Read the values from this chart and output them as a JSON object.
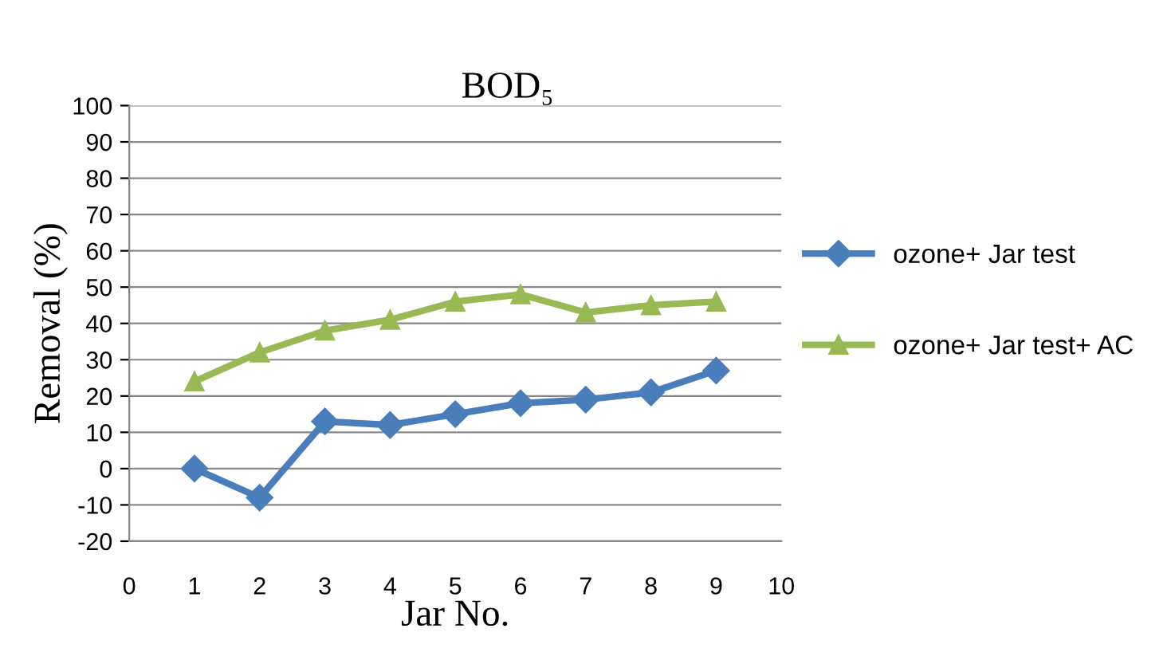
{
  "chart_data": {
    "type": "line",
    "title": "BOD₅",
    "xlabel": "Jar No.",
    "ylabel": "Removal (%)",
    "x": [
      1,
      2,
      3,
      4,
      5,
      6,
      7,
      8,
      9
    ],
    "series": [
      {
        "name": "ozone+ Jar test",
        "color": "#4a7ebb",
        "marker": "diamond",
        "values": [
          0,
          -8,
          13,
          12,
          15,
          18,
          19,
          21,
          27
        ]
      },
      {
        "name": "ozone+ Jar test+ AC",
        "color": "#98b954",
        "marker": "triangle",
        "values": [
          24,
          32,
          38,
          41,
          46,
          48,
          43,
          45,
          46
        ]
      }
    ],
    "xlim": [
      0,
      10
    ],
    "xticks": [
      0,
      1,
      2,
      3,
      4,
      5,
      6,
      7,
      8,
      9,
      10
    ],
    "ylim": [
      -20,
      100
    ],
    "yticks": [
      -20,
      -10,
      0,
      10,
      20,
      30,
      40,
      50,
      60,
      70,
      80,
      90,
      100
    ],
    "grid": "y",
    "legend": "right",
    "line_style": "solid"
  }
}
